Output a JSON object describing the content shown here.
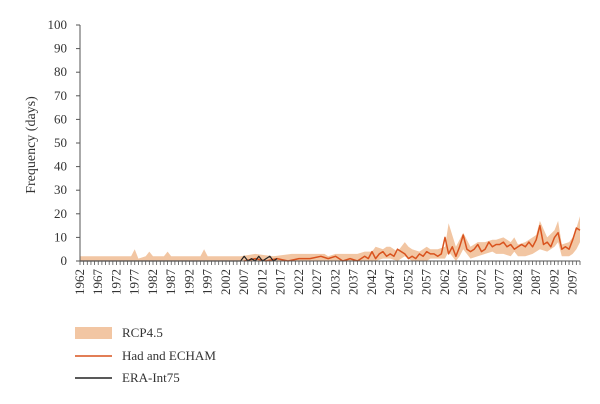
{
  "colors": {
    "band": "#f2c6a3",
    "had": "#d9531e",
    "era": "#222222",
    "axis": "#555555"
  },
  "chart_data": {
    "type": "line",
    "ylabel": "Frequency (days)",
    "ylim": [
      0,
      100
    ],
    "yticks": [
      0,
      10,
      20,
      30,
      40,
      50,
      60,
      70,
      80,
      90,
      100
    ],
    "xlim": [
      1962,
      2099
    ],
    "xticks": [
      1962,
      1967,
      1972,
      1977,
      1982,
      1987,
      1992,
      1997,
      2002,
      2007,
      2012,
      2017,
      2022,
      2027,
      2032,
      2037,
      2042,
      2047,
      2052,
      2057,
      2062,
      2067,
      2072,
      2077,
      2082,
      2087,
      2092,
      2097
    ],
    "grid": false,
    "legend_position": "bottom-left",
    "legend": [
      {
        "label": "RCP4.5",
        "kind": "band"
      },
      {
        "label": "Had and ECHAM",
        "kind": "line"
      },
      {
        "label": "ERA-Int75",
        "kind": "line"
      }
    ],
    "series": [
      {
        "name": "RCP4.5",
        "kind": "band",
        "x": [
          1962,
          1976,
          1977,
          1978,
          1980,
          1981,
          1982,
          1985,
          1986,
          1987,
          1995,
          1996,
          1997,
          2006,
          2010,
          2015,
          2020,
          2025,
          2029,
          2030,
          2032,
          2035,
          2038,
          2040,
          2042,
          2043,
          2045,
          2046,
          2047,
          2049,
          2051,
          2052,
          2053,
          2055,
          2057,
          2058,
          2060,
          2062,
          2063,
          2065,
          2066,
          2067,
          2069,
          2071,
          2073,
          2075,
          2076,
          2078,
          2080,
          2081,
          2082,
          2084,
          2086,
          2087,
          2088,
          2090,
          2092,
          2093,
          2094,
          2096,
          2097,
          2098,
          2099
        ],
        "lower": [
          0,
          0,
          0,
          0,
          0,
          0,
          0,
          0,
          0,
          0,
          0,
          0,
          0,
          0,
          0,
          0,
          0,
          0,
          0,
          0,
          0,
          0,
          0,
          0,
          0,
          0,
          1,
          1,
          1,
          0,
          2,
          1,
          0,
          0,
          0,
          1,
          1,
          1,
          4,
          0,
          2,
          5,
          1,
          2,
          3,
          4,
          3,
          3,
          2,
          4,
          2,
          2,
          3,
          4,
          5,
          4,
          6,
          8,
          2,
          2,
          3,
          5,
          8
        ],
        "upper": [
          2,
          2,
          5,
          1,
          2,
          4,
          2,
          2,
          4,
          2,
          2,
          5,
          2,
          2,
          3,
          2,
          3,
          3,
          3,
          2,
          3,
          3,
          3,
          4,
          4,
          6,
          5,
          6,
          6,
          4,
          8,
          6,
          5,
          4,
          6,
          5,
          5,
          6,
          16,
          6,
          9,
          12,
          6,
          8,
          8,
          9,
          9,
          10,
          8,
          10,
          7,
          8,
          10,
          11,
          17,
          10,
          13,
          17,
          7,
          8,
          10,
          14,
          19
        ]
      },
      {
        "name": "Had and ECHAM",
        "kind": "line",
        "x": [
          2007,
          2010,
          2013,
          2016,
          2019,
          2022,
          2025,
          2028,
          2030,
          2032,
          2034,
          2036,
          2038,
          2040,
          2041,
          2042,
          2043,
          2044,
          2045,
          2046,
          2047,
          2048,
          2049,
          2050,
          2051,
          2052,
          2053,
          2054,
          2055,
          2056,
          2057,
          2058,
          2059,
          2060,
          2061,
          2062,
          2063,
          2064,
          2065,
          2066,
          2067,
          2068,
          2069,
          2070,
          2071,
          2072,
          2073,
          2074,
          2075,
          2076,
          2077,
          2078,
          2079,
          2080,
          2081,
          2082,
          2083,
          2084,
          2085,
          2086,
          2087,
          2088,
          2089,
          2090,
          2091,
          2092,
          2093,
          2094,
          2095,
          2096,
          2097,
          2098,
          2099
        ],
        "values": [
          0,
          1,
          0,
          1,
          0,
          1,
          1,
          2,
          1,
          2,
          0,
          1,
          0,
          2,
          1,
          4,
          1,
          3,
          4,
          2,
          3,
          2,
          5,
          4,
          3,
          1,
          2,
          1,
          3,
          2,
          4,
          3,
          3,
          2,
          3,
          10,
          3,
          6,
          2,
          6,
          11,
          5,
          4,
          5,
          7,
          4,
          5,
          8,
          6,
          7,
          7,
          8,
          6,
          7,
          5,
          6,
          7,
          6,
          8,
          6,
          9,
          15,
          7,
          8,
          6,
          10,
          12,
          5,
          6,
          5,
          9,
          14,
          13
        ]
      },
      {
        "name": "ERA-Int75",
        "kind": "line",
        "x": [
          1962,
          2006,
          2007,
          2008,
          2009,
          2010,
          2011,
          2012,
          2013,
          2014,
          2015,
          2016
        ],
        "values": [
          0,
          0,
          2,
          0,
          1,
          0,
          2,
          0,
          1,
          2,
          0,
          1
        ]
      }
    ]
  }
}
